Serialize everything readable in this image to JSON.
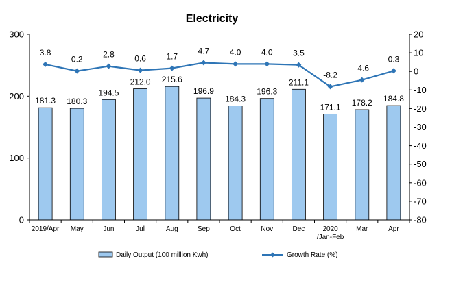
{
  "chart_data": {
    "type": "bar",
    "title": "Electricity",
    "categories": [
      "2019/Apr",
      "May",
      "Jun",
      "Jul",
      "Aug",
      "Sep",
      "Oct",
      "Nov",
      "Dec",
      "2020/Jan-Feb",
      "Mar",
      "Apr"
    ],
    "category_lines": [
      [
        "2019/Apr"
      ],
      [
        "May"
      ],
      [
        "Jun"
      ],
      [
        "Jul"
      ],
      [
        "Aug"
      ],
      [
        "Sep"
      ],
      [
        "Oct"
      ],
      [
        "Nov"
      ],
      [
        "Dec"
      ],
      [
        "2020",
        "/Jan-Feb"
      ],
      [
        "Mar"
      ],
      [
        "Apr"
      ]
    ],
    "series": [
      {
        "name": "Daily Output (100 million Kwh)",
        "type": "bar",
        "axis": "left",
        "color": "#9ec9ef",
        "values": [
          181.3,
          180.3,
          194.5,
          212.0,
          215.6,
          196.9,
          184.3,
          196.3,
          211.1,
          171.1,
          178.2,
          184.8
        ],
        "labels": [
          "181.3",
          "180.3",
          "194.5",
          "212.0",
          "215.6",
          "196.9",
          "184.3",
          "196.3",
          "211.1",
          "171.1",
          "178.2",
          "184.8"
        ]
      },
      {
        "name": "Growth Rate (%)",
        "type": "line",
        "axis": "right",
        "color": "#2e75b6",
        "values": [
          3.8,
          0.2,
          2.8,
          0.6,
          1.7,
          4.7,
          4.0,
          4.0,
          3.5,
          -8.2,
          -4.6,
          0.3
        ],
        "labels": [
          "3.8",
          "0.2",
          "2.8",
          "0.6",
          "1.7",
          "4.7",
          "4.0",
          "4.0",
          "3.5",
          "-8.2",
          "-4.6",
          "0.3"
        ]
      }
    ],
    "y_left": {
      "min": 0,
      "max": 300,
      "ticks": [
        "0",
        "100",
        "200",
        "300"
      ]
    },
    "y_right": {
      "min": -80,
      "max": 20,
      "ticks": [
        "20",
        "10",
        "0",
        "-10",
        "-20",
        "-30",
        "-40",
        "-50",
        "-60",
        "-70",
        "-80"
      ]
    },
    "grid": false,
    "legend_position": "bottom"
  }
}
